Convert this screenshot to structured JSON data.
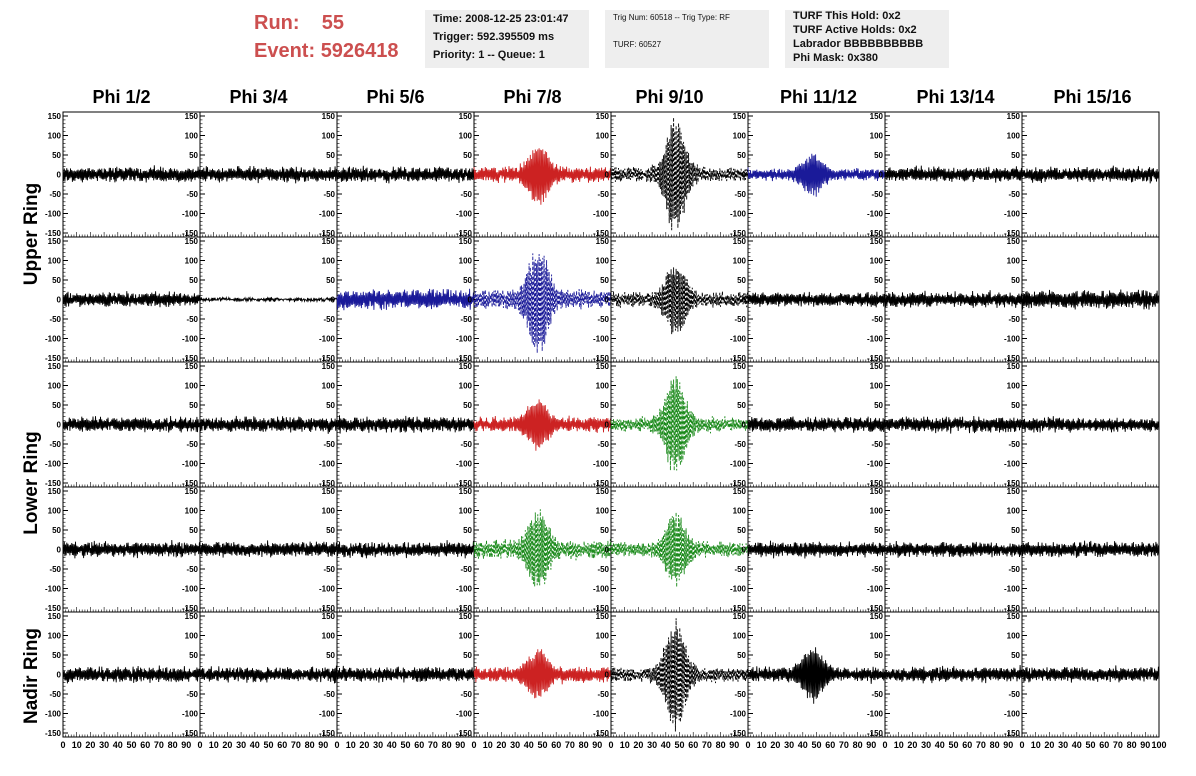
{
  "header": {
    "run_label": "Run:",
    "run_value": "55",
    "event_label": "Event:",
    "event_value": "5926418",
    "time_box": {
      "time": "Time: 2008-12-25 23:01:47",
      "trigger": "Trigger: 592.395509 ms",
      "priority": "Priority: 1 -- Queue: 1"
    },
    "trig_box": {
      "trig": "Trig Num: 60518 -- Trig Type: RF",
      "turf": "TURF: 60527"
    },
    "turf_box": {
      "hold": "TURF This Hold: 0x2",
      "active": "TURF Active Holds: 0x2",
      "labrador": "Labrador BBBBBBBBBB",
      "phimask": "Phi Mask: 0x380"
    }
  },
  "chart_data": {
    "type": "line",
    "columns": [
      "Phi 1/2",
      "Phi 3/4",
      "Phi 5/6",
      "Phi 7/8",
      "Phi 9/10",
      "Phi 11/12",
      "Phi 13/14",
      "Phi 15/16"
    ],
    "ring_labels": [
      "Upper Ring",
      "Lower Ring",
      "Nadir Ring"
    ],
    "rows_per_ring": [
      2,
      2,
      1
    ],
    "xlim": [
      0,
      100
    ],
    "ylim": [
      -150,
      150
    ],
    "y_ticks": [
      "150",
      "100",
      "50",
      "0",
      "-50",
      "-100",
      "-150"
    ],
    "x_ticks": [
      "0",
      "10",
      "20",
      "30",
      "40",
      "50",
      "60",
      "70",
      "80",
      "90",
      "100"
    ],
    "colors": {
      "quiet": "#000000",
      "red": "#cc2222",
      "blue": "#1a1a99",
      "green": "#1a8a1a"
    },
    "panels": [
      [
        {
          "color": "quiet",
          "amp": [
            14,
            22
          ],
          "burst": 0,
          "dashed": false
        },
        {
          "color": "quiet",
          "amp": [
            14,
            22
          ],
          "burst": 0,
          "dashed": false
        },
        {
          "color": "quiet",
          "amp": [
            14,
            22
          ],
          "burst": 0,
          "dashed": false
        },
        {
          "color": "red",
          "amp": [
            14,
            22
          ],
          "burst": 65,
          "dashed": false
        },
        {
          "color": "quiet",
          "amp": [
            14,
            22
          ],
          "burst": 140,
          "dashed": true
        },
        {
          "color": "blue",
          "amp": [
            10,
            18
          ],
          "burst": 45,
          "dashed": false
        },
        {
          "color": "quiet",
          "amp": [
            14,
            22
          ],
          "burst": 0,
          "dashed": false
        },
        {
          "color": "quiet",
          "amp": [
            14,
            22
          ],
          "burst": 0,
          "dashed": false
        }
      ],
      [
        {
          "color": "quiet",
          "amp": [
            14,
            22
          ],
          "burst": 0,
          "dashed": false
        },
        {
          "color": "quiet",
          "amp": [
            2,
            4
          ],
          "burst": 0,
          "dashed": false
        },
        {
          "color": "blue",
          "amp": [
            18,
            28
          ],
          "burst": 0,
          "dashed": false
        },
        {
          "color": "blue",
          "amp": [
            18,
            28
          ],
          "burst": 130,
          "dashed": true
        },
        {
          "color": "quiet",
          "amp": [
            14,
            22
          ],
          "burst": 90,
          "dashed": true
        },
        {
          "color": "quiet",
          "amp": [
            14,
            22
          ],
          "burst": 0,
          "dashed": false
        },
        {
          "color": "quiet",
          "amp": [
            14,
            22
          ],
          "burst": 0,
          "dashed": false
        },
        {
          "color": "quiet",
          "amp": [
            18,
            28
          ],
          "burst": 0,
          "dashed": false
        }
      ],
      [
        {
          "color": "quiet",
          "amp": [
            14,
            22
          ],
          "burst": 0,
          "dashed": false
        },
        {
          "color": "quiet",
          "amp": [
            14,
            22
          ],
          "burst": 0,
          "dashed": false
        },
        {
          "color": "quiet",
          "amp": [
            14,
            22
          ],
          "burst": 0,
          "dashed": false
        },
        {
          "color": "red",
          "amp": [
            14,
            22
          ],
          "burst": 55,
          "dashed": false
        },
        {
          "color": "green",
          "amp": [
            14,
            22
          ],
          "burst": 120,
          "dashed": true
        },
        {
          "color": "quiet",
          "amp": [
            14,
            22
          ],
          "burst": 0,
          "dashed": false
        },
        {
          "color": "quiet",
          "amp": [
            14,
            22
          ],
          "burst": 0,
          "dashed": false
        },
        {
          "color": "quiet",
          "amp": [
            14,
            22
          ],
          "burst": 0,
          "dashed": false
        }
      ],
      [
        {
          "color": "quiet",
          "amp": [
            14,
            22
          ],
          "burst": 0,
          "dashed": false
        },
        {
          "color": "quiet",
          "amp": [
            14,
            22
          ],
          "burst": 0,
          "dashed": false
        },
        {
          "color": "quiet",
          "amp": [
            14,
            22
          ],
          "burst": 0,
          "dashed": false
        },
        {
          "color": "green",
          "amp": [
            18,
            28
          ],
          "burst": 90,
          "dashed": true
        },
        {
          "color": "green",
          "amp": [
            14,
            22
          ],
          "burst": 90,
          "dashed": true
        },
        {
          "color": "quiet",
          "amp": [
            14,
            22
          ],
          "burst": 0,
          "dashed": false
        },
        {
          "color": "quiet",
          "amp": [
            14,
            22
          ],
          "burst": 0,
          "dashed": false
        },
        {
          "color": "quiet",
          "amp": [
            14,
            22
          ],
          "burst": 0,
          "dashed": false
        }
      ],
      [
        {
          "color": "quiet",
          "amp": [
            14,
            22
          ],
          "burst": 0,
          "dashed": false
        },
        {
          "color": "quiet",
          "amp": [
            14,
            22
          ],
          "burst": 0,
          "dashed": false
        },
        {
          "color": "quiet",
          "amp": [
            14,
            22
          ],
          "burst": 0,
          "dashed": false
        },
        {
          "color": "red",
          "amp": [
            14,
            22
          ],
          "burst": 55,
          "dashed": false
        },
        {
          "color": "quiet",
          "amp": [
            14,
            22
          ],
          "burst": 135,
          "dashed": true
        },
        {
          "color": "quiet",
          "amp": [
            14,
            22
          ],
          "burst": 60,
          "dashed": false
        },
        {
          "color": "quiet",
          "amp": [
            14,
            22
          ],
          "burst": 0,
          "dashed": false
        },
        {
          "color": "quiet",
          "amp": [
            14,
            22
          ],
          "burst": 0,
          "dashed": false
        }
      ]
    ]
  }
}
